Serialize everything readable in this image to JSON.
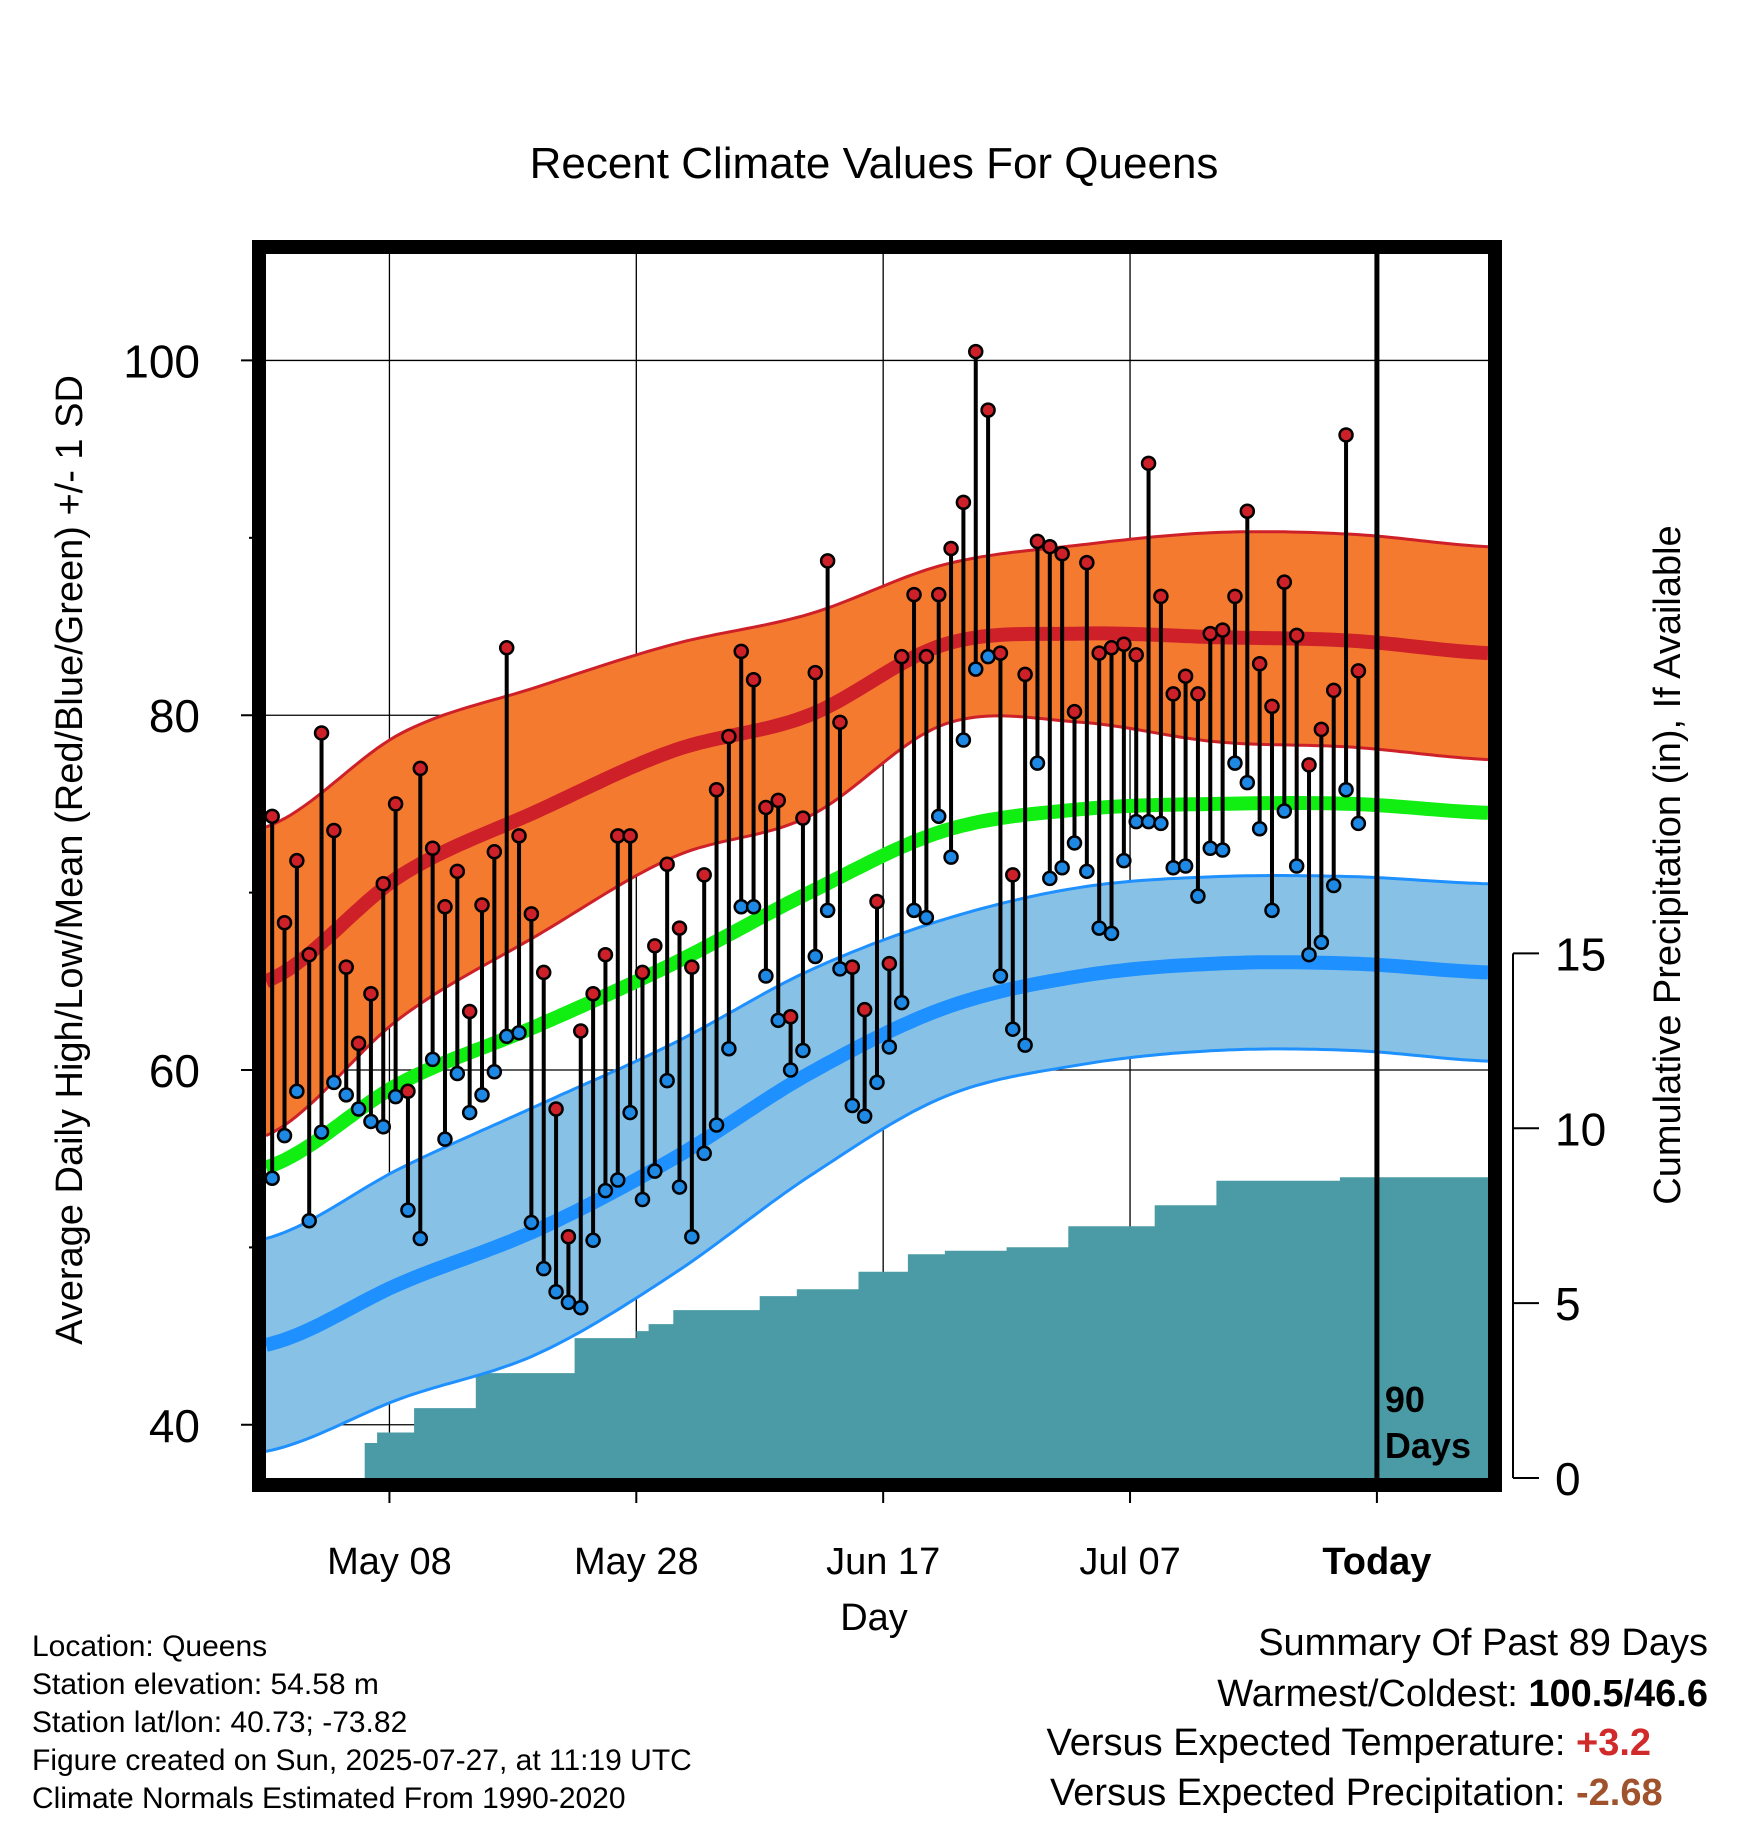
{
  "chart_data": {
    "type": "line",
    "title": "Recent Climate Values For Queens",
    "xlabel": "Day",
    "ylabel": "Average Daily High/Low/Mean (Red/Blue/Green) +/- 1 SD",
    "y2label": "Cumulative Precipitation (in), If Available",
    "x_tick_labels": [
      "May 08",
      "May 28",
      "Jun 17",
      "Jul 07",
      "Today"
    ],
    "x_tick_days": [
      10,
      30,
      50,
      70,
      90
    ],
    "x_range_days": [
      0,
      99
    ],
    "ylim": [
      37,
      106
    ],
    "yticks": [
      40,
      60,
      80,
      100
    ],
    "y2lim": [
      0,
      35
    ],
    "y2ticks": [
      0,
      5,
      10,
      15
    ],
    "marker_label": "90 Days",
    "highs": [
      74.3,
      68.3,
      71.8,
      66.5,
      79.0,
      73.5,
      65.8,
      61.5,
      64.3,
      70.5,
      75.0,
      58.8,
      77.0,
      72.5,
      69.2,
      71.2,
      63.3,
      69.3,
      72.3,
      83.8,
      73.2,
      68.8,
      65.5,
      57.8,
      50.6,
      62.2,
      64.3,
      66.5,
      73.2,
      73.2,
      65.5,
      67.0,
      71.6,
      68.0,
      65.8,
      71.0,
      75.8,
      78.8,
      83.6,
      82.0,
      74.8,
      75.2,
      63.0,
      74.2,
      82.4,
      88.7,
      79.6,
      65.8,
      63.4,
      69.5,
      66.0,
      83.3,
      86.8,
      83.3,
      86.8,
      89.4,
      92.0,
      100.5,
      97.2,
      83.5,
      71.0,
      82.3,
      89.8,
      89.5,
      89.1,
      80.2,
      88.6,
      83.5,
      83.8,
      84.0,
      83.4,
      94.2,
      86.7,
      81.2,
      82.2,
      81.2,
      84.6,
      84.8,
      86.7,
      91.5,
      82.9,
      80.5,
      87.5,
      84.5,
      77.2,
      79.2,
      81.4,
      95.8,
      82.5
    ],
    "lows": [
      53.9,
      56.3,
      58.8,
      51.5,
      56.5,
      59.3,
      58.6,
      57.8,
      57.1,
      56.8,
      58.5,
      52.1,
      50.5,
      60.6,
      56.1,
      59.8,
      57.6,
      58.6,
      59.9,
      61.9,
      62.1,
      51.4,
      48.8,
      47.5,
      46.9,
      46.6,
      50.4,
      53.2,
      53.8,
      57.6,
      52.7,
      54.3,
      59.4,
      53.4,
      50.6,
      55.3,
      56.9,
      61.2,
      69.2,
      69.2,
      65.3,
      62.8,
      60.0,
      61.1,
      66.4,
      69.0,
      65.7,
      58.0,
      57.4,
      59.3,
      61.3,
      63.8,
      69.0,
      68.6,
      74.3,
      72.0,
      78.6,
      82.6,
      83.3,
      65.3,
      62.3,
      61.4,
      77.3,
      70.8,
      71.4,
      72.8,
      71.2,
      68.0,
      67.7,
      71.8,
      74.0,
      74.0,
      73.9,
      71.4,
      71.5,
      69.8,
      72.5,
      72.4,
      77.3,
      76.2,
      73.6,
      69.0,
      74.6,
      71.5,
      66.5,
      67.2,
      70.4,
      75.8,
      73.9
    ],
    "normal_high": [
      65.0,
      71.0,
      74.6,
      78.0,
      80.0,
      84.0,
      84.6,
      84.4,
      84.2,
      83.5
    ],
    "normal_high_sd": [
      8.7,
      8.0,
      7.0,
      6.0,
      5.7,
      4.5,
      5.0,
      5.9,
      6.0,
      6.0
    ],
    "normal_mean": [
      54.5,
      59.3,
      62.5,
      66.0,
      70.0,
      73.5,
      74.7,
      75.0,
      75.0,
      74.5
    ],
    "normal_low": [
      44.5,
      48.0,
      51.0,
      55.0,
      59.8,
      63.5,
      65.3,
      66.0,
      66.0,
      65.5
    ],
    "normal_low_sd": [
      6.0,
      6.5,
      7.0,
      6.5,
      5.8,
      5.0,
      5.0,
      4.9,
      4.9,
      5.0
    ],
    "precip": [
      0,
      0,
      0,
      0,
      0,
      0,
      0,
      0,
      1.0,
      1.3,
      1.3,
      1.3,
      2.0,
      2.0,
      2.0,
      2.0,
      2.0,
      3.0,
      3.0,
      3.0,
      3.0,
      3.0,
      3.0,
      3.0,
      3.0,
      4.0,
      4.0,
      4.0,
      4.0,
      4.0,
      4.2,
      4.4,
      4.4,
      4.8,
      4.8,
      4.8,
      4.8,
      4.8,
      4.8,
      4.8,
      5.2,
      5.2,
      5.2,
      5.4,
      5.4,
      5.4,
      5.4,
      5.4,
      5.9,
      5.9,
      5.9,
      5.9,
      6.4,
      6.4,
      6.4,
      6.5,
      6.5,
      6.5,
      6.5,
      6.5,
      6.6,
      6.6,
      6.6,
      6.6,
      6.6,
      7.2,
      7.2,
      7.2,
      7.2,
      7.2,
      7.2,
      7.2,
      7.8,
      7.8,
      7.8,
      7.8,
      7.8,
      8.5,
      8.5,
      8.5,
      8.5,
      8.5,
      8.5,
      8.5,
      8.5,
      8.5,
      8.5,
      8.6,
      8.6,
      8.6,
      8.6,
      8.6,
      8.6,
      8.6,
      8.6,
      8.6,
      8.6,
      8.6,
      8.6,
      8.6
    ],
    "colors": {
      "high_band": "#f47a30",
      "high_line": "#cd2028",
      "mean_line": "#11ee11",
      "low_band": "#87c2e6",
      "low_line": "#1e90ff",
      "precip": "#4a9ba6",
      "high_dot": "#cd2028",
      "low_dot": "#1e88e5"
    }
  },
  "info": {
    "location": "Location: Queens",
    "elevation": "Station elevation: 54.58 m",
    "latlon": "Station lat/lon: 40.73; -73.82",
    "created": "Figure created on Sun, 2025-07-27, at 11:19 UTC",
    "normals": "Climate Normals Estimated From 1990-2020"
  },
  "summary": {
    "title": "Summary Of Past 89 Days",
    "warm_cold_label": "Warmest/Coldest:",
    "warm_cold_value": "100.5/46.6",
    "temp_label": "Versus Expected Temperature:",
    "temp_value": "+3.2",
    "temp_color": "#d12a2a",
    "precip_label": "Versus Expected Precipitation:",
    "precip_value": "-2.68",
    "precip_color": "#a0522d"
  }
}
